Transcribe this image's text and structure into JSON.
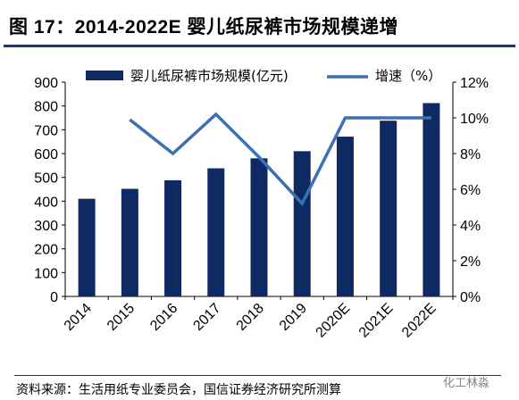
{
  "title": "图 17：2014-2022E 婴儿纸尿裤市场规模递增",
  "source": "资料来源：生活用纸专业委员会，国信证券经济研究所测算",
  "watermark": "化工林淼",
  "colors": {
    "bar": "#0f2a63",
    "line": "#3c6fb4",
    "rule": "#1f3864"
  },
  "chart_data": {
    "type": "bar",
    "categories": [
      "2014",
      "2015",
      "2016",
      "2017",
      "2018",
      "2019",
      "2020E",
      "2021E",
      "2022E"
    ],
    "series": [
      {
        "name": "婴儿纸尿裤市场规模(亿元)",
        "type": "bar",
        "axis": "left",
        "values": [
          410,
          452,
          488,
          538,
          580,
          610,
          671,
          738,
          812
        ]
      },
      {
        "name": "增速（%）",
        "type": "line",
        "axis": "right",
        "values": [
          null,
          9.9,
          8.0,
          10.2,
          7.8,
          5.2,
          10.0,
          10.0,
          10.0
        ]
      }
    ],
    "left_axis": {
      "min": 0,
      "max": 900,
      "step": 100,
      "ticks": [
        "0",
        "100",
        "200",
        "300",
        "400",
        "500",
        "600",
        "700",
        "800",
        "900"
      ]
    },
    "right_axis": {
      "min": 0,
      "max": 12,
      "step": 2,
      "ticks": [
        "0%",
        "2%",
        "4%",
        "6%",
        "8%",
        "10%",
        "12%"
      ]
    },
    "legend_position": "top",
    "grid": false
  }
}
